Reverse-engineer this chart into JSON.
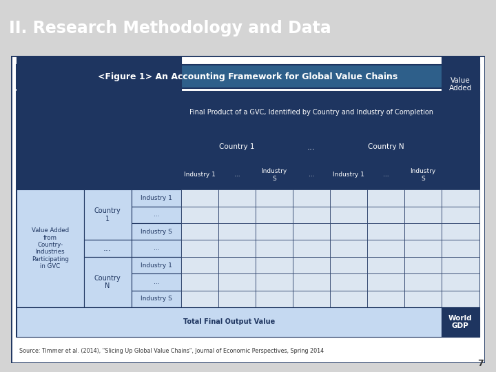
{
  "title": "II. Research Methodology and Data",
  "figure_title": "<Figure 1> An Accounting Framework for Global Value Chains",
  "source_text": "Source: Timmer et al. (2014), \"Slicing Up Global Value Chains\", Journal of Economic Perspectives, Spring 2014",
  "colors": {
    "slide_title_bg": "#1e3560",
    "slide_title_text": "#ffffff",
    "outer_bg": "#d4d4d4",
    "frame_bg": "#ffffff",
    "frame_border": "#1e3560",
    "fig_title_bg": "#2e5f8a",
    "fig_title_text": "#ffffff",
    "col_header_bg": "#1e3560",
    "col_header_text": "#ffffff",
    "row_header_bg": "#c5d9f1",
    "row_header_text": "#1e3560",
    "cell_bg": "#dce6f1",
    "source_text_color": "#333333"
  }
}
